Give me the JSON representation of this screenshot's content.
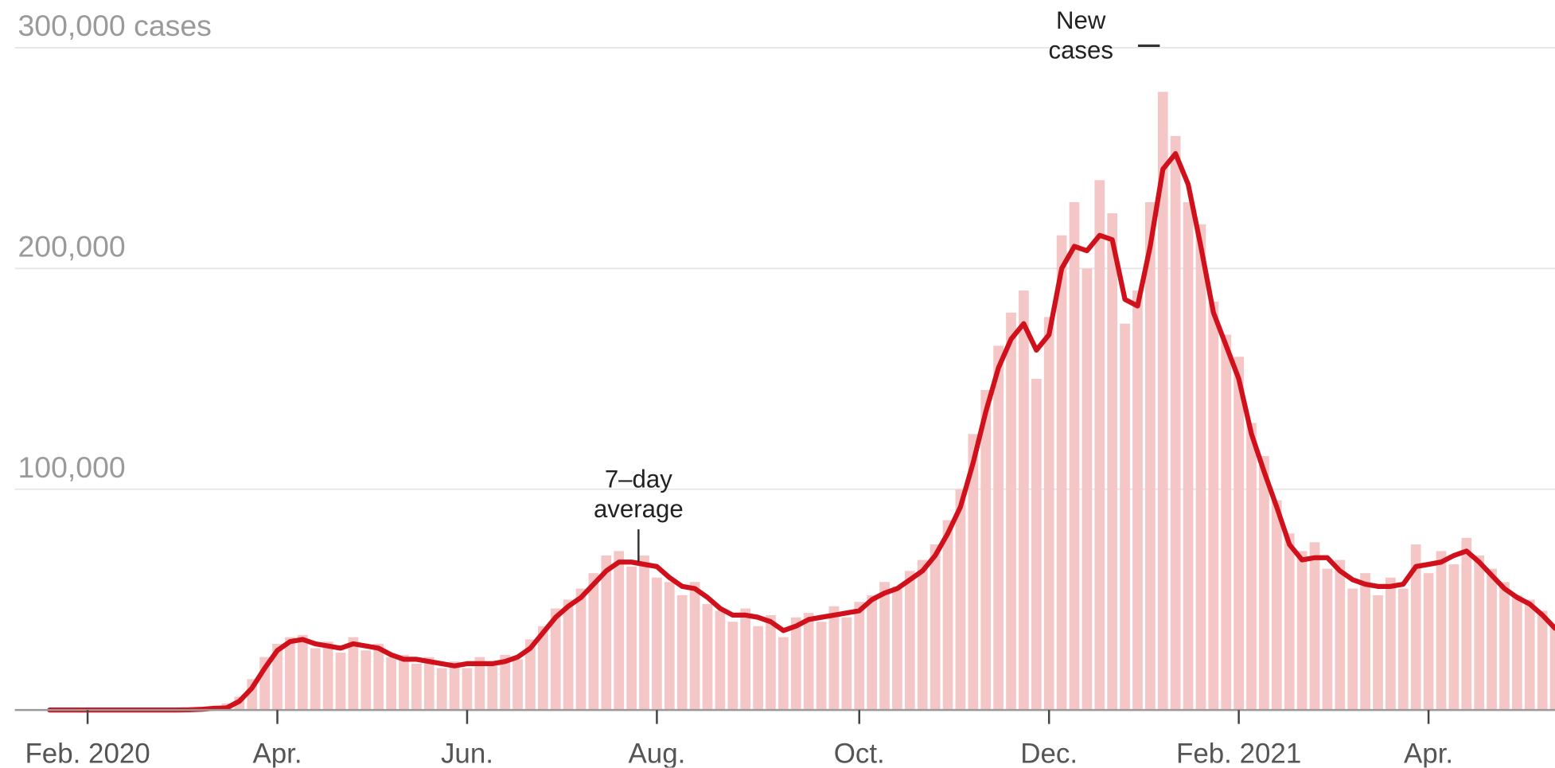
{
  "chart_data": {
    "type": "bar",
    "categories": [
      null,
      null,
      null,
      "Feb. 2020",
      null,
      null,
      null,
      null,
      null,
      null,
      null,
      null,
      null,
      null,
      null,
      null,
      null,
      null,
      "Apr.",
      null,
      null,
      null,
      null,
      null,
      null,
      null,
      null,
      null,
      null,
      null,
      null,
      null,
      null,
      "Jun.",
      null,
      null,
      null,
      null,
      null,
      null,
      null,
      null,
      null,
      null,
      null,
      null,
      null,
      null,
      "Aug.",
      null,
      null,
      null,
      null,
      null,
      null,
      null,
      null,
      null,
      null,
      null,
      null,
      null,
      null,
      null,
      "Oct.",
      null,
      null,
      null,
      null,
      null,
      null,
      null,
      null,
      null,
      null,
      null,
      null,
      null,
      null,
      "Dec.",
      null,
      null,
      null,
      null,
      null,
      null,
      null,
      null,
      null,
      null,
      null,
      null,
      null,
      null,
      "Feb. 2021",
      null,
      null,
      null,
      null,
      null,
      null,
      null,
      null,
      null,
      null,
      null,
      null,
      null,
      null,
      "Apr.",
      null,
      null,
      null,
      null,
      null,
      null,
      null,
      null,
      null,
      null
    ],
    "series": [
      {
        "name": "New cases",
        "type": "bar",
        "color": "#f5c6c6",
        "values": [
          0,
          0,
          0,
          0,
          0,
          0,
          0,
          0,
          0,
          0,
          0,
          200,
          500,
          1500,
          3000,
          6000,
          14000,
          24000,
          30000,
          33000,
          34000,
          28000,
          31000,
          26000,
          33000,
          27000,
          30000,
          24000,
          25000,
          21000,
          24000,
          19000,
          22000,
          19000,
          24000,
          20000,
          25000,
          23000,
          32000,
          38000,
          46000,
          50000,
          55000,
          62000,
          70000,
          72000,
          65000,
          70000,
          60000,
          58000,
          52000,
          58000,
          48000,
          45000,
          40000,
          46000,
          38000,
          43000,
          33000,
          42000,
          44000,
          40000,
          47000,
          42000,
          49000,
          52000,
          58000,
          56000,
          63000,
          68000,
          75000,
          86000,
          100000,
          125000,
          145000,
          165000,
          180000,
          190000,
          150000,
          178000,
          215000,
          230000,
          200000,
          240000,
          225000,
          175000,
          190000,
          230000,
          280000,
          260000,
          230000,
          220000,
          185000,
          170000,
          160000,
          130000,
          115000,
          95000,
          80000,
          72000,
          76000,
          64000,
          68000,
          55000,
          62000,
          52000,
          60000,
          55000,
          75000,
          62000,
          72000,
          66000,
          78000,
          70000,
          64000,
          58000,
          52000,
          50000,
          45000,
          38000
        ]
      },
      {
        "name": "7–day average",
        "type": "line",
        "color": "#d0101b",
        "values": [
          0,
          0,
          0,
          0,
          0,
          0,
          0,
          0,
          0,
          0,
          0,
          100,
          300,
          800,
          1000,
          4000,
          10000,
          19000,
          27000,
          31000,
          32000,
          30000,
          29000,
          28000,
          30000,
          29000,
          28000,
          25000,
          23000,
          23000,
          22000,
          21000,
          20000,
          21000,
          21000,
          21000,
          22000,
          24000,
          28000,
          35000,
          42000,
          47000,
          51000,
          57000,
          63000,
          67000,
          67000,
          66000,
          65000,
          60000,
          56000,
          55000,
          51000,
          46000,
          43000,
          43000,
          42000,
          40000,
          36000,
          38000,
          41000,
          42000,
          43000,
          44000,
          45000,
          50000,
          53000,
          55000,
          59000,
          63000,
          70000,
          80000,
          92000,
          112000,
          135000,
          155000,
          168000,
          175000,
          163000,
          170000,
          200000,
          210000,
          208000,
          215000,
          213000,
          186000,
          183000,
          210000,
          245000,
          252000,
          238000,
          210000,
          180000,
          165000,
          150000,
          125000,
          108000,
          92000,
          75000,
          68000,
          69000,
          69000,
          63000,
          59000,
          57000,
          56000,
          56000,
          57000,
          65000,
          66000,
          67000,
          70000,
          72000,
          67000,
          61000,
          55000,
          51000,
          48000,
          43000,
          37000
        ]
      }
    ],
    "ylim": [
      0,
      300000
    ],
    "yticks": [
      {
        "value": 100000,
        "label": "100,000"
      },
      {
        "value": 200000,
        "label": "200,000"
      },
      {
        "value": 300000,
        "label": "300,000 cases"
      }
    ],
    "grid": true
  }
}
